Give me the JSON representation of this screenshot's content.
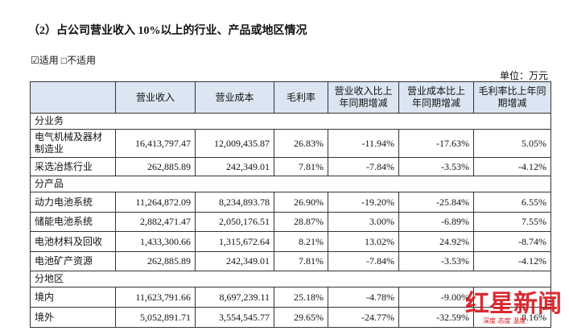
{
  "heading": "（2）占公司营业收入 10%以上的行业、产品或地区情况",
  "applicability": {
    "applicable": "☑适用",
    "not_applicable": "□不适用"
  },
  "unit": "单位：万元",
  "table": {
    "header": [
      "营业收入",
      "营业成本",
      "毛利率",
      "营业收入比上年同期增减",
      "营业成本比上年同期增减",
      "毛利率比上年同期增减"
    ],
    "rows": [
      {
        "group": "分业务"
      },
      {
        "label": "电气机械及器材制造业",
        "values": [
          "16,413,797.47",
          "12,009,435.87",
          "26.83%",
          "-11.94%",
          "-17.63%",
          "5.05%"
        ]
      },
      {
        "label": "采选冶炼行业",
        "values": [
          "262,885.89",
          "242,349.01",
          "7.81%",
          "-7.84%",
          "-3.53%",
          "-4.12%"
        ]
      },
      {
        "group": "分产品"
      },
      {
        "label": "动力电池系统",
        "values": [
          "11,264,872.09",
          "8,234,893.78",
          "26.90%",
          "-19.20%",
          "-25.84%",
          "6.55%"
        ]
      },
      {
        "label": "储能电池系统",
        "values": [
          "2,882,471.47",
          "2,050,176.51",
          "28.87%",
          "3.00%",
          "-6.89%",
          "7.55%"
        ]
      },
      {
        "label": "电池材料及回收",
        "values": [
          "1,433,300.66",
          "1,315,672.64",
          "8.21%",
          "13.02%",
          "24.92%",
          "-8.74%"
        ]
      },
      {
        "label": "电池矿产资源",
        "values": [
          "262,885.89",
          "242,349.01",
          "7.81%",
          "-7.84%",
          "-3.53%",
          "-4.12%"
        ]
      },
      {
        "group": "分地区"
      },
      {
        "label": "境内",
        "values": [
          "11,623,791.66",
          "8,697,239.11",
          "25.18%",
          "-4.78%",
          "-9.00%",
          null
        ]
      },
      {
        "label": "境外",
        "values": [
          "5,052,891.71",
          "3,554,545.77",
          "29.65%",
          "-24.77%",
          "-32.59%",
          "8.16%"
        ]
      }
    ]
  },
  "watermark": {
    "logo": "红星新闻",
    "slogan": "深度 态度 温度"
  }
}
